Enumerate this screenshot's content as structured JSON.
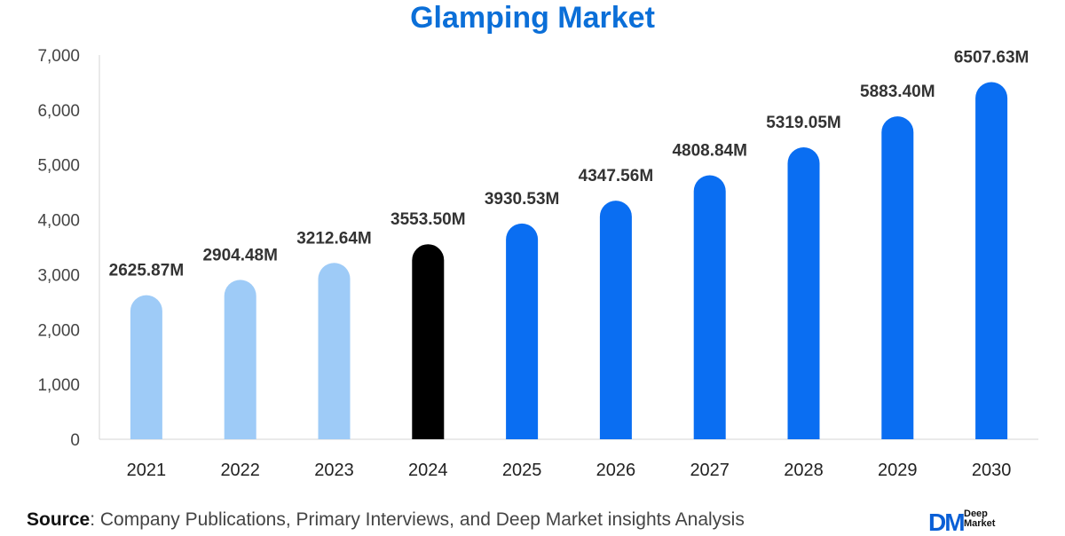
{
  "chart_data": {
    "type": "bar",
    "title": "Glamping Market",
    "categories": [
      "2021",
      "2022",
      "2023",
      "2024",
      "2025",
      "2026",
      "2027",
      "2028",
      "2029",
      "2030"
    ],
    "values": [
      2625.87,
      2904.48,
      3212.64,
      3553.5,
      3930.53,
      4347.56,
      4808.84,
      5319.05,
      5883.4,
      6507.63
    ],
    "data_labels": [
      "2625.87M",
      "2904.48M",
      "3212.64M",
      "3553.50M",
      "3930.53M",
      "4347.56M",
      "4808.84M",
      "5319.05M",
      "5883.40M",
      "6507.63M"
    ],
    "bar_colors": [
      "#9ecbf7",
      "#9ecbf7",
      "#9ecbf7",
      "#000000",
      "#0a6ef2",
      "#0a6ef2",
      "#0a6ef2",
      "#0a6ef2",
      "#0a6ef2",
      "#0a6ef2"
    ],
    "ylim": [
      0,
      7000
    ],
    "yticks": [
      0,
      1000,
      2000,
      3000,
      4000,
      5000,
      6000,
      7000
    ],
    "ytick_labels": [
      "0",
      "1,000",
      "2,000",
      "3,000",
      "4,000",
      "5,000",
      "6,000",
      "7,000"
    ],
    "grid": false,
    "legend": "none"
  },
  "footer": {
    "source_label": "Source",
    "source_text": ": Company Publications, Primary Interviews, and Deep Market insights Analysis"
  },
  "brand": {
    "mark": "DM",
    "name_line1": "Deep",
    "name_line2": "Market"
  }
}
